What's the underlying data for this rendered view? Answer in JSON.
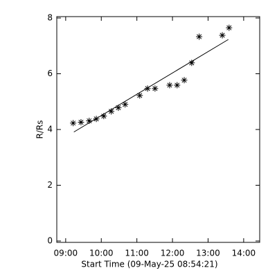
{
  "chart_data": {
    "type": "scatter",
    "xlabel": "Start Time (09-May-25 08:54:21)",
    "ylabel": "R/Rs",
    "x": [
      9.21,
      9.43,
      9.66,
      9.86,
      10.07,
      10.28,
      10.48,
      10.67,
      11.08,
      11.3,
      11.51,
      11.92,
      12.13,
      12.33,
      12.54,
      12.75,
      13.4,
      13.59
    ],
    "values": [
      4.23,
      4.26,
      4.31,
      4.38,
      4.48,
      4.65,
      4.78,
      4.9,
      5.22,
      5.47,
      5.47,
      5.59,
      5.59,
      5.77,
      6.39,
      7.33,
      7.38,
      7.65
    ],
    "fit": {
      "x": [
        9.23,
        13.57
      ],
      "values": [
        3.91,
        7.23
      ]
    },
    "color": "#000000",
    "xlim": [
      8.75,
      14.45
    ],
    "ylim": [
      -0.05,
      8.05
    ],
    "xticks": [
      {
        "value": 9,
        "label": "09:00"
      },
      {
        "value": 10,
        "label": "10:00"
      },
      {
        "value": 11,
        "label": "11:00"
      },
      {
        "value": 12,
        "label": "12:00"
      },
      {
        "value": 13,
        "label": "13:00"
      },
      {
        "value": 14,
        "label": "14:00"
      }
    ],
    "yticks": [
      0,
      2,
      4,
      6,
      8
    ]
  }
}
